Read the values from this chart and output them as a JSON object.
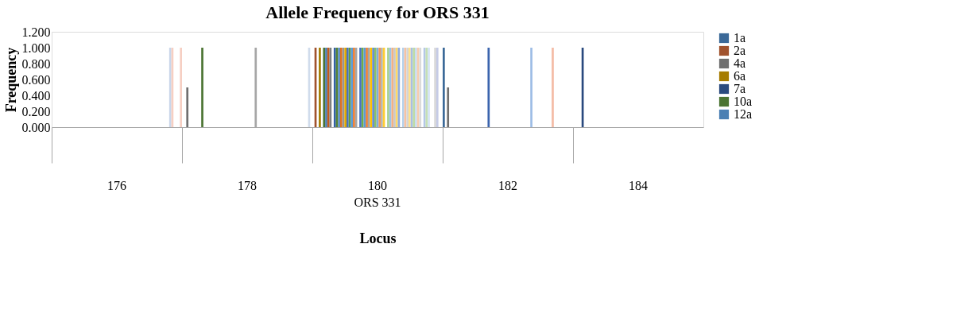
{
  "chart_data": {
    "type": "bar",
    "title": "Allele Frequency for ORS 331",
    "xlabel": "Locus",
    "ylabel": "Frequency",
    "annotations": [
      "ORS 331"
    ],
    "categories": [
      "176",
      "178",
      "180",
      "182",
      "184"
    ],
    "ylim": [
      0,
      1.2
    ],
    "yticks": [
      {
        "value": 0,
        "label": "0.000"
      },
      {
        "value": 0.2,
        "label": "0.200"
      },
      {
        "value": 0.4,
        "label": "0.400"
      },
      {
        "value": 0.6,
        "label": "0.600"
      },
      {
        "value": 0.8,
        "label": "0.800"
      },
      {
        "value": 1,
        "label": "1.000"
      },
      {
        "value": 1.2,
        "label": "1.200"
      }
    ],
    "legend": "right",
    "grid": false,
    "series": [
      {
        "name": "1a",
        "color": "#3b6998",
        "values": [
          null,
          null,
          null,
          1,
          null
        ]
      },
      {
        "name": "2a",
        "color": "#a0522d",
        "values": [
          null,
          null,
          1,
          null,
          null
        ]
      },
      {
        "name": "4a",
        "color": "#6f6f6f",
        "values": [
          null,
          0.5,
          null,
          0.5,
          null
        ]
      },
      {
        "name": "6a",
        "color": "#a67c00",
        "values": [
          null,
          null,
          1,
          null,
          null
        ]
      },
      {
        "name": "7a",
        "color": "#2a4a7e",
        "values": [
          null,
          null,
          null,
          null,
          1
        ]
      },
      {
        "name": "10a",
        "color": "#4b7432",
        "values": [
          null,
          null,
          1,
          null,
          null
        ]
      },
      {
        "name": "12a",
        "color": "#4a7fb3",
        "values": [
          null,
          null,
          1,
          null,
          null
        ]
      },
      {
        "color": "#c35a1c",
        "values": [
          null,
          null,
          1,
          null,
          null
        ]
      },
      {
        "color": "#7f7f7f",
        "values": [
          null,
          null,
          1,
          null,
          null
        ]
      },
      {
        "color": "#4b7432",
        "values": [
          null,
          1,
          null,
          null,
          null
        ]
      },
      {
        "color": "#3460a8",
        "values": [
          null,
          null,
          1,
          null,
          null
        ]
      },
      {
        "color": "#548235",
        "values": [
          null,
          null,
          1,
          null,
          null
        ]
      },
      {
        "color": "#5b8fc7",
        "values": [
          null,
          null,
          1,
          null,
          null
        ]
      },
      {
        "color": "#e07020",
        "values": [
          null,
          null,
          1,
          null,
          null
        ]
      },
      {
        "color": "#959595",
        "values": [
          null,
          null,
          1,
          null,
          null
        ]
      },
      {
        "color": "#e0a800",
        "values": [
          null,
          null,
          1,
          null,
          null
        ]
      },
      {
        "color": "#4472c4",
        "values": [
          null,
          null,
          1,
          null,
          null
        ]
      },
      {
        "color": "#62993e",
        "values": [
          null,
          null,
          1,
          null,
          null
        ]
      },
      {
        "color": "#5b9bd5",
        "values": [
          null,
          null,
          1,
          null,
          null
        ]
      },
      {
        "color": "#ed7d31",
        "values": [
          null,
          null,
          1,
          null,
          null
        ]
      },
      {
        "color": "#a5a5a5",
        "values": [
          null,
          null,
          1,
          null,
          null
        ]
      },
      {
        "color": "#3b64ad",
        "values": [
          null,
          null,
          null,
          1,
          null
        ]
      },
      {
        "color": "#4472c4",
        "values": [
          null,
          null,
          1,
          null,
          null
        ]
      },
      {
        "color": "#70ad47",
        "values": [
          null,
          null,
          1,
          null,
          null
        ]
      },
      {
        "color": "#5b9bd5",
        "values": [
          null,
          null,
          1,
          null,
          null
        ]
      },
      {
        "color": "#ed7d31",
        "values": [
          null,
          null,
          1,
          null,
          null
        ]
      },
      {
        "color": "#a5a5a5",
        "values": [
          null,
          null,
          1,
          null,
          null
        ]
      },
      {
        "color": "#ffc000",
        "values": [
          null,
          null,
          1,
          null,
          null
        ]
      },
      {
        "color": "#698ed0",
        "values": [
          null,
          null,
          1,
          null,
          null
        ]
      },
      {
        "color": "#8cc168",
        "values": [
          null,
          null,
          1,
          null,
          null
        ]
      },
      {
        "color": "#7cafdd",
        "values": [
          null,
          null,
          1,
          null,
          null
        ]
      },
      {
        "color": "#f1975a",
        "values": [
          null,
          null,
          1,
          null,
          null
        ]
      },
      {
        "color": "#b7b7b7",
        "values": [
          null,
          null,
          1,
          null,
          null
        ]
      },
      {
        "color": "#ffcd33",
        "values": [
          null,
          null,
          1,
          null,
          null
        ]
      },
      {
        "color": "#a6a6a6",
        "values": [
          null,
          1,
          null,
          null,
          null
        ]
      },
      {
        "color": "#a9d18e",
        "values": [
          null,
          null,
          1,
          null,
          null
        ]
      },
      {
        "color": "#9dc3e6",
        "values": [
          null,
          null,
          1,
          null,
          null
        ]
      },
      {
        "color": "#f4b183",
        "values": [
          null,
          null,
          1,
          null,
          null
        ]
      },
      {
        "color": "#c9c9c9",
        "values": [
          null,
          null,
          1,
          null,
          null
        ]
      },
      {
        "color": "#ffd966",
        "values": [
          null,
          null,
          1,
          null,
          null
        ]
      },
      {
        "color": "#8faadc",
        "values": [
          null,
          null,
          1,
          null,
          null
        ]
      },
      {
        "color": "#9dbde6",
        "values": [
          null,
          null,
          null,
          1,
          null
        ]
      },
      {
        "color": "#b4d0ec",
        "values": [
          null,
          null,
          1,
          null,
          null
        ]
      },
      {
        "color": "#f6c2a2",
        "values": [
          null,
          null,
          1,
          null,
          null
        ]
      },
      {
        "color": "#d4d4d4",
        "values": [
          null,
          null,
          1,
          null,
          null
        ]
      },
      {
        "color": "#ffe08c",
        "values": [
          null,
          null,
          1,
          null,
          null
        ]
      },
      {
        "color": "#a9bee4",
        "values": [
          null,
          null,
          1,
          null,
          null
        ]
      },
      {
        "color": "#bedba6",
        "values": [
          null,
          null,
          1,
          null,
          null
        ]
      },
      {
        "color": "#c9ddf1",
        "values": [
          null,
          null,
          1,
          null,
          null
        ]
      },
      {
        "color": "#f8cbad",
        "values": [
          null,
          null,
          1,
          null,
          null
        ]
      },
      {
        "color": "#dbdbdb",
        "values": [
          null,
          null,
          1,
          null,
          null
        ]
      },
      {
        "color": "#f4bba5",
        "values": [
          null,
          null,
          null,
          1,
          null
        ]
      },
      {
        "color": "#b4c7e7",
        "values": [
          null,
          null,
          1,
          null,
          null
        ]
      },
      {
        "color": "#c5e0b4",
        "values": [
          null,
          null,
          1,
          null,
          null
        ]
      },
      {
        "color": "#d4e4f4",
        "values": [
          null,
          null,
          1,
          null,
          null
        ]
      },
      {
        "color": "#c9d6ea",
        "values": [
          1,
          null,
          null,
          null,
          null
        ]
      },
      {
        "color": "#f6cfc3",
        "values": [
          1,
          null,
          null,
          null,
          null
        ]
      },
      {
        "color": "#d9d9d9",
        "values": [
          null,
          null,
          1,
          null,
          null
        ]
      },
      {
        "color": "#c5cbe6",
        "values": [
          null,
          null,
          1,
          null,
          null
        ]
      },
      {
        "color": "#d0dcec",
        "values": [
          null,
          1,
          null,
          null,
          null
        ]
      },
      {
        "color": "#f6cfc3",
        "values": [
          1,
          null,
          null,
          null,
          null
        ]
      }
    ]
  }
}
